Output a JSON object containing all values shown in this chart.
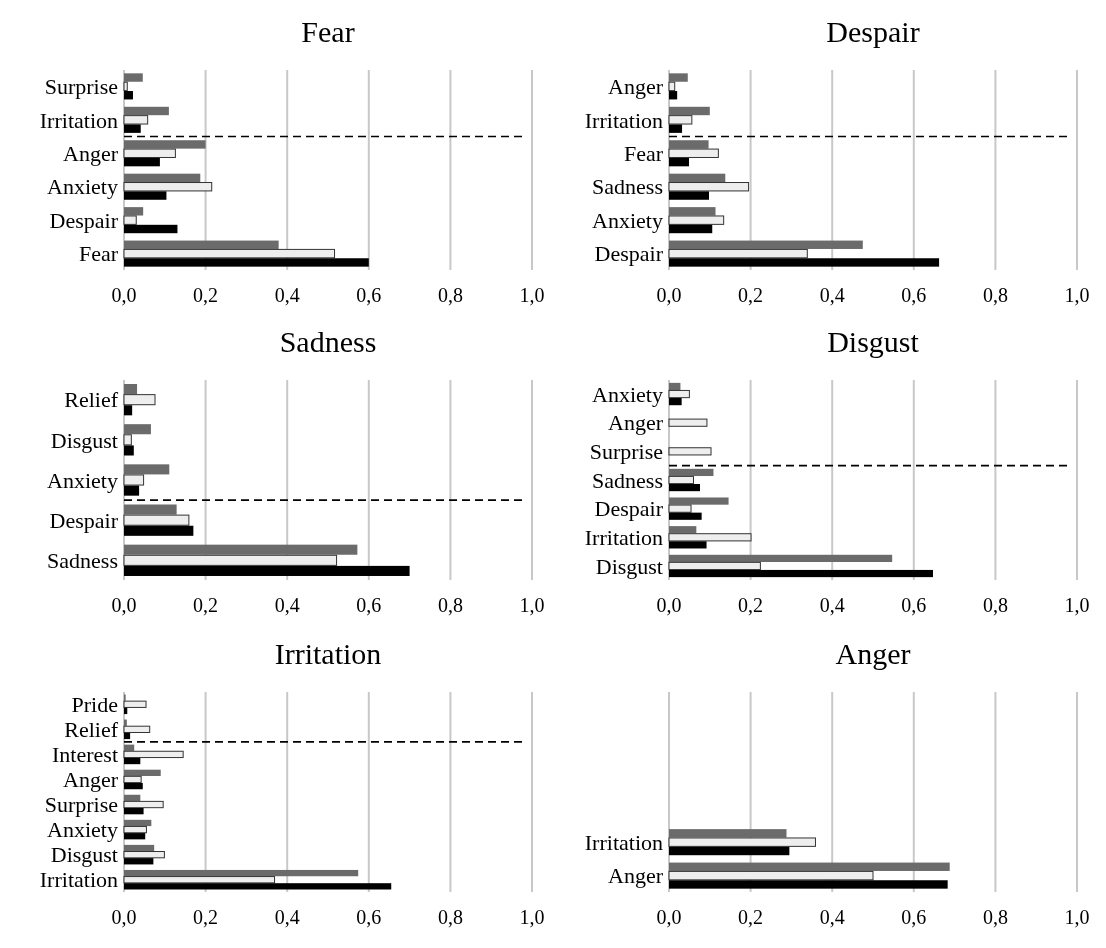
{
  "chart_data": [
    {
      "type": "bar",
      "orientation": "horizontal",
      "title": "Fear",
      "categories": [
        "Surprise",
        "Irritation",
        "Anger",
        "Anxiety",
        "Despair",
        "Fear"
      ],
      "series": [
        {
          "color": "#6b6b6b",
          "values": [
            0.046,
            0.11,
            0.2,
            0.187,
            0.047,
            0.379
          ]
        },
        {
          "color": "#eeeeee",
          "values": [
            0.008,
            0.058,
            0.126,
            0.215,
            0.03,
            0.516
          ]
        },
        {
          "color": "#000000",
          "values": [
            0.022,
            0.041,
            0.088,
            0.104,
            0.131,
            0.6
          ]
        }
      ],
      "xlim": [
        0,
        1
      ],
      "xticks": [
        {
          "value": 0,
          "label": "0,0"
        },
        {
          "value": 0.2,
          "label": "0,2"
        },
        {
          "value": 0.4,
          "label": "0,4"
        },
        {
          "value": 0.6,
          "label": "0,6"
        },
        {
          "value": 0.8,
          "label": "0,8"
        },
        {
          "value": 1,
          "label": "1,0"
        }
      ],
      "grid": "x",
      "ref_lines": [
        {
          "axis": "y",
          "value": "Irritation",
          "line_style": "dashed",
          "color": "#000000"
        }
      ]
    },
    {
      "type": "bar",
      "orientation": "horizontal",
      "title": "Despair",
      "categories": [
        "Anger",
        "Irritation",
        "Fear",
        "Sadness",
        "Anxiety",
        "Despair"
      ],
      "series": [
        {
          "color": "#6b6b6b",
          "values": [
            0.046,
            0.1,
            0.097,
            0.138,
            0.114,
            0.475
          ]
        },
        {
          "color": "#eeeeee",
          "values": [
            0.014,
            0.056,
            0.121,
            0.195,
            0.134,
            0.339
          ]
        },
        {
          "color": "#000000",
          "values": [
            0.02,
            0.032,
            0.049,
            0.098,
            0.106,
            0.662
          ]
        }
      ],
      "xlim": [
        0,
        1
      ],
      "xticks": [
        {
          "value": 0,
          "label": "0,0"
        },
        {
          "value": 0.2,
          "label": "0,2"
        },
        {
          "value": 0.4,
          "label": "0,4"
        },
        {
          "value": 0.6,
          "label": "0,6"
        },
        {
          "value": 0.8,
          "label": "0,8"
        },
        {
          "value": 1,
          "label": "1,0"
        }
      ],
      "grid": "x",
      "ref_lines": [
        {
          "axis": "y",
          "value": "Irritation",
          "line_style": "dashed",
          "color": "#000000"
        }
      ]
    },
    {
      "type": "bar",
      "orientation": "horizontal",
      "title": "Sadness",
      "categories": [
        "Relief",
        "Disgust",
        "Anxiety",
        "Despair",
        "Sadness"
      ],
      "series": [
        {
          "color": "#6b6b6b",
          "values": [
            0.032,
            0.066,
            0.111,
            0.129,
            0.572
          ]
        },
        {
          "color": "#eeeeee",
          "values": [
            0.076,
            0.018,
            0.048,
            0.159,
            0.521
          ]
        },
        {
          "color": "#000000",
          "values": [
            0.02,
            0.024,
            0.037,
            0.17,
            0.7
          ]
        }
      ],
      "xlim": [
        0,
        1
      ],
      "xticks": [
        {
          "value": 0,
          "label": "0,0"
        },
        {
          "value": 0.2,
          "label": "0,2"
        },
        {
          "value": 0.4,
          "label": "0,4"
        },
        {
          "value": 0.6,
          "label": "0,6"
        },
        {
          "value": 0.8,
          "label": "0,8"
        },
        {
          "value": 1,
          "label": "1,0"
        }
      ],
      "grid": "x",
      "ref_lines": [
        {
          "axis": "y",
          "value": "Anxiety",
          "line_style": "dashed",
          "color": "#000000"
        }
      ]
    },
    {
      "type": "bar",
      "orientation": "horizontal",
      "title": "Disgust",
      "categories": [
        "Anxiety",
        "Anger",
        "Surprise",
        "Sadness",
        "Despair",
        "Irritation",
        "Disgust"
      ],
      "series": [
        {
          "color": "#6b6b6b",
          "values": [
            0.028,
            null,
            null,
            0.109,
            0.146,
            0.067,
            0.547
          ]
        },
        {
          "color": "#eeeeee",
          "values": [
            0.05,
            0.093,
            0.103,
            0.06,
            0.054,
            0.201,
            0.224
          ]
        },
        {
          "color": "#000000",
          "values": [
            0.031,
            null,
            null,
            0.076,
            0.08,
            0.092,
            0.647
          ]
        }
      ],
      "xlim": [
        0,
        1
      ],
      "xticks": [
        {
          "value": 0,
          "label": "0,0"
        },
        {
          "value": 0.2,
          "label": "0,2"
        },
        {
          "value": 0.4,
          "label": "0,4"
        },
        {
          "value": 0.6,
          "label": "0,6"
        },
        {
          "value": 0.8,
          "label": "0,8"
        },
        {
          "value": 1,
          "label": "1,0"
        }
      ],
      "grid": "x",
      "ref_lines": [
        {
          "axis": "y",
          "value": "Surprise",
          "line_style": "dashed",
          "color": "#000000"
        }
      ]
    },
    {
      "type": "bar",
      "orientation": "horizontal",
      "title": "Irritation",
      "categories": [
        "Pride",
        "Relief",
        "Interest",
        "Anger",
        "Surprise",
        "Anxiety",
        "Disgust",
        "Irritation"
      ],
      "series": [
        {
          "color": "#6b6b6b",
          "values": [
            0.004,
            0.007,
            0.025,
            0.09,
            0.04,
            0.067,
            0.074,
            0.574
          ]
        },
        {
          "color": "#eeeeee",
          "values": [
            0.054,
            0.063,
            0.145,
            0.042,
            0.096,
            0.055,
            0.099,
            0.369
          ]
        },
        {
          "color": "#000000",
          "values": [
            0.008,
            0.015,
            0.04,
            0.046,
            0.048,
            0.052,
            0.072,
            0.655
          ]
        }
      ],
      "xlim": [
        0,
        1
      ],
      "xticks": [
        {
          "value": 0,
          "label": "0,0"
        },
        {
          "value": 0.2,
          "label": "0,2"
        },
        {
          "value": 0.4,
          "label": "0,4"
        },
        {
          "value": 0.6,
          "label": "0,6"
        },
        {
          "value": 0.8,
          "label": "0,8"
        },
        {
          "value": 1,
          "label": "1,0"
        }
      ],
      "grid": "x",
      "ref_lines": [
        {
          "axis": "y",
          "value": "Relief",
          "line_style": "dashed",
          "color": "#000000"
        }
      ]
    },
    {
      "type": "bar",
      "orientation": "horizontal",
      "title": "Anger",
      "categories": [
        null,
        null,
        null,
        null,
        "Irritation",
        "Anger"
      ],
      "series": [
        {
          "color": "#6b6b6b",
          "values": [
            null,
            null,
            null,
            null,
            0.288,
            0.688
          ]
        },
        {
          "color": "#eeeeee",
          "values": [
            null,
            null,
            null,
            null,
            0.359,
            0.5
          ]
        },
        {
          "color": "#000000",
          "values": [
            null,
            null,
            null,
            null,
            0.295,
            0.683
          ]
        }
      ],
      "xlim": [
        0,
        1
      ],
      "xticks": [
        {
          "value": 0,
          "label": "0,0"
        },
        {
          "value": 0.2,
          "label": "0,2"
        },
        {
          "value": 0.4,
          "label": "0,4"
        },
        {
          "value": 0.6,
          "label": "0,6"
        },
        {
          "value": 0.8,
          "label": "0,8"
        },
        {
          "value": 1,
          "label": "1,0"
        }
      ],
      "grid": "x"
    }
  ]
}
